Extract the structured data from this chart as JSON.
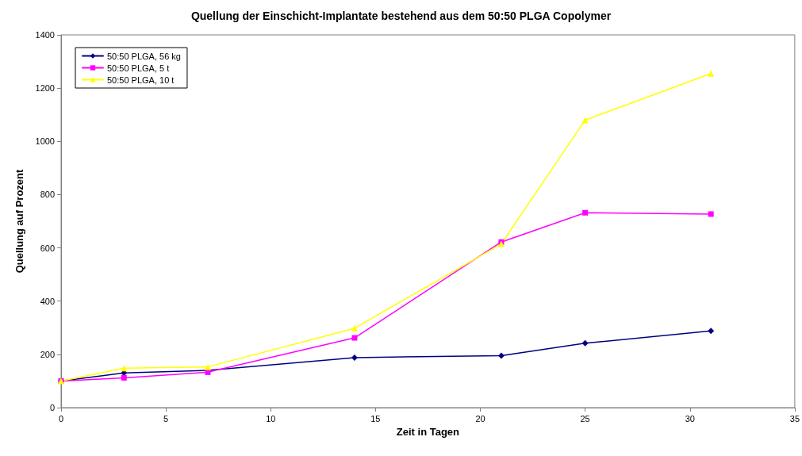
{
  "chart_data": {
    "type": "line",
    "title": "Quellung der Einschicht-Implantate bestehend aus dem 50:50 PLGA Copolymer",
    "xlabel": "Zeit in Tagen",
    "ylabel": "Quellung auf Prozent",
    "x": [
      0,
      3,
      7,
      14,
      21,
      25,
      31
    ],
    "xlim": [
      0,
      35
    ],
    "xticks": [
      0,
      5,
      10,
      15,
      20,
      25,
      30,
      35
    ],
    "ylim": [
      0,
      1400
    ],
    "yticks": [
      0,
      200,
      400,
      600,
      800,
      1000,
      1200,
      1400
    ],
    "grid": false,
    "legend": "top left",
    "line_style": "solid",
    "series": [
      {
        "name": "50:50 PLGA, 56 kg",
        "color": "#000080",
        "marker": "diamond",
        "values": [
          100,
          130,
          140,
          188,
          195,
          242,
          288
        ]
      },
      {
        "name": "50:50 PLGA, 5 t",
        "color": "#ff00ff",
        "marker": "square",
        "values": [
          100,
          112,
          133,
          262,
          622,
          732,
          727
        ]
      },
      {
        "name": "50:50 PLGA, 10 t",
        "color": "#ffff00",
        "marker": "triangle",
        "values": [
          100,
          148,
          153,
          298,
          615,
          1080,
          1255
        ]
      }
    ]
  }
}
